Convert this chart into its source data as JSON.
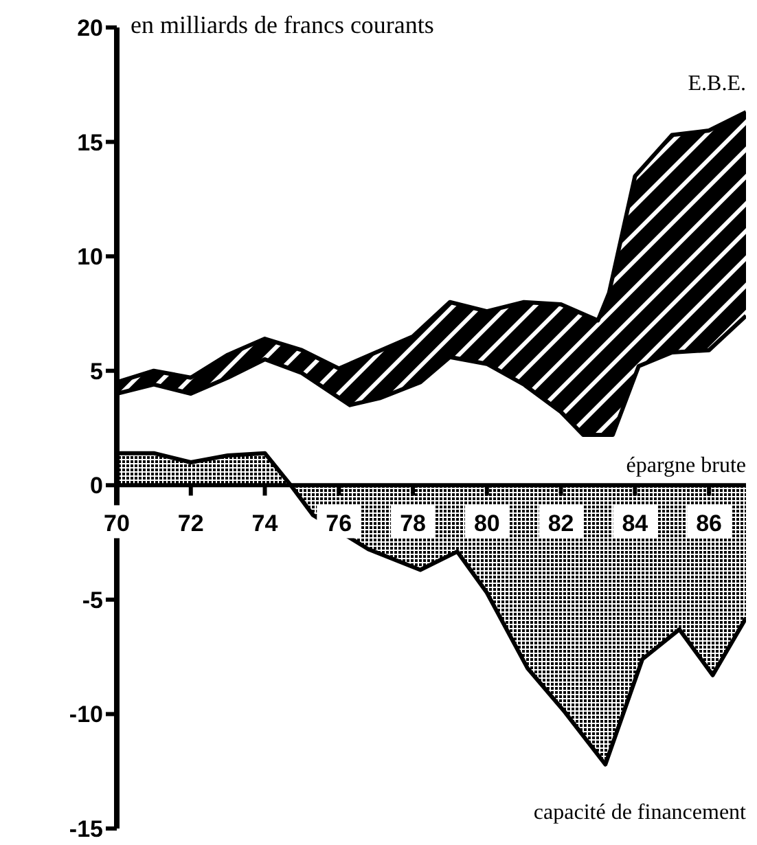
{
  "chart_data": {
    "type": "area",
    "subtitle": "en milliards de francs courants",
    "series": [
      {
        "name": "E.B.E.",
        "color": "#000000",
        "x": [
          70,
          71,
          72,
          73,
          74,
          75,
          76,
          77,
          78,
          79,
          80,
          81,
          82,
          83,
          83.3,
          84,
          85,
          86,
          87
        ],
        "values": [
          4.5,
          5.0,
          4.7,
          5.7,
          6.4,
          5.9,
          5.1,
          5.8,
          6.5,
          8.0,
          7.6,
          8.0,
          7.9,
          7.2,
          8.4,
          13.5,
          15.3,
          15.5,
          16.3
        ]
      },
      {
        "name": "épargne brute",
        "color": "#000000",
        "x": [
          70,
          71,
          72,
          73,
          74,
          75,
          76.3,
          77.1,
          78.2,
          79,
          80,
          81,
          82,
          82.6,
          83.4,
          84.1,
          85,
          86,
          87
        ],
        "values": [
          4.0,
          4.4,
          4.0,
          4.7,
          5.5,
          4.9,
          3.5,
          3.8,
          4.5,
          5.6,
          5.3,
          4.4,
          3.2,
          2.2,
          2.2,
          5.2,
          5.8,
          5.9,
          7.4
        ]
      },
      {
        "name": "capacité de financement",
        "color": "#000000",
        "x": [
          70,
          71,
          72,
          73,
          74,
          74.7,
          75.3,
          76.8,
          78.2,
          79.2,
          80,
          81.1,
          82.1,
          83.2,
          84.2,
          85.2,
          86.1,
          87
        ],
        "values": [
          1.4,
          1.4,
          1.0,
          1.3,
          1.4,
          0,
          -1.3,
          -2.8,
          -3.7,
          -2.9,
          -4.7,
          -8.0,
          -9.9,
          -12.2,
          -7.6,
          -6.3,
          -8.3,
          -5.8
        ]
      }
    ],
    "xlim": [
      70,
      87
    ],
    "xticks": [
      70,
      72,
      74,
      76,
      78,
      80,
      82,
      84,
      86
    ],
    "ylim": [
      -15,
      20
    ],
    "yticks": [
      -15,
      -10,
      -5,
      0,
      5,
      10,
      15,
      20
    ]
  }
}
